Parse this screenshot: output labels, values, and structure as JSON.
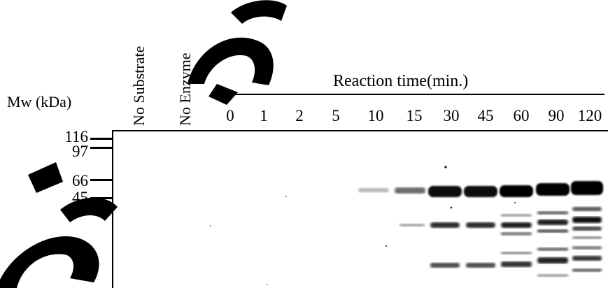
{
  "mw_title": "Mw (kDa)",
  "control_lanes": [
    {
      "label": "No Substrate"
    },
    {
      "label": "No Enzyme"
    }
  ],
  "reaction_title": "Reaction time(min.)",
  "time_lanes": [
    "0",
    "1",
    "2",
    "5",
    "10",
    "15",
    "30",
    "45",
    "60",
    "90",
    "120"
  ],
  "markers": [
    "116",
    "97",
    "66",
    "45"
  ],
  "watermark_color": "#000000"
}
